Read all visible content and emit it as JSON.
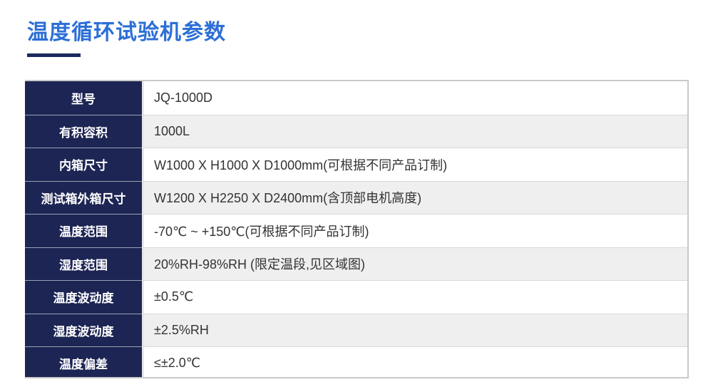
{
  "header": {
    "title": "温度循环试验机参数"
  },
  "colors": {
    "title_blue": "#2d6fd6",
    "underline_navy": "#1b2a5e",
    "label_cell_navy": "#1d2554",
    "alt_row_gray": "#efefef",
    "table_border_gray": "#c9c9c9",
    "value_text": "#333333"
  },
  "table": {
    "rows": [
      {
        "label": "型号",
        "value": "JQ-1000D"
      },
      {
        "label": "有积容积",
        "value": "1000L"
      },
      {
        "label": "内箱尺寸",
        "value": "W1000 X H1000 X D1000mm(可根据不同产品订制)"
      },
      {
        "label": "测试箱外箱尺寸",
        "value": "W1200 X H2250 X D2400mm(含顶部电机高度)"
      },
      {
        "label": "温度范围",
        "value": "-70℃ ~ +150℃(可根据不同产品订制)"
      },
      {
        "label": "湿度范围",
        "value": "20%RH-98%RH (限定温段,见区域图)"
      },
      {
        "label": "温度波动度",
        "value": "±0.5℃"
      },
      {
        "label": "湿度波动度",
        "value": "±2.5%RH"
      },
      {
        "label": "温度偏差",
        "value": "≤±2.0℃"
      }
    ]
  }
}
